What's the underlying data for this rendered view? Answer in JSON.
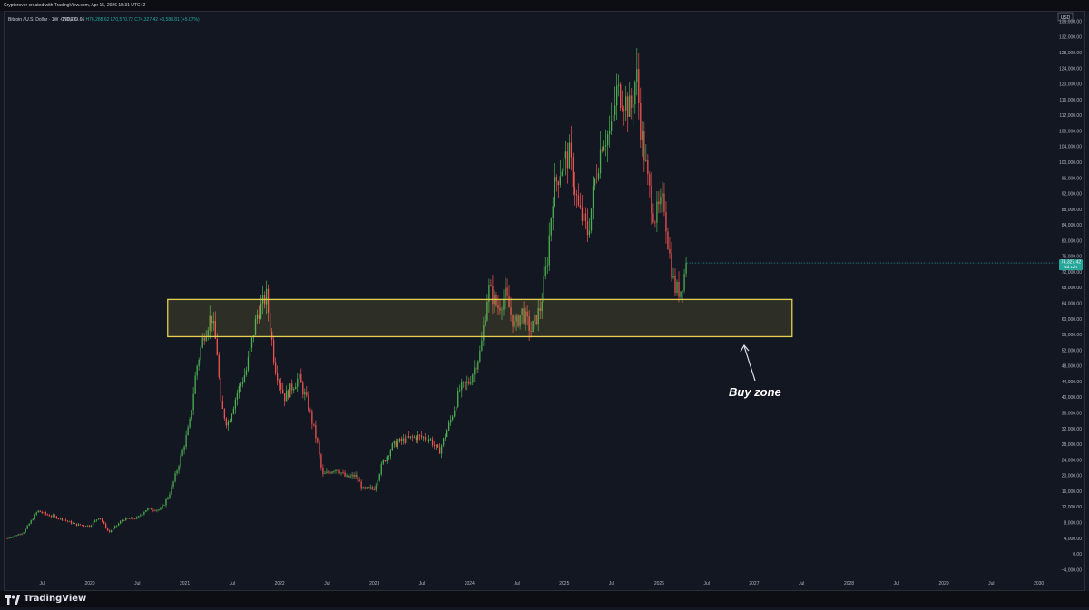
{
  "header": {
    "credit": "Cryptorover created with TradingView.com, Apr 15, 2026 15:31 UTC+2"
  },
  "legend": {
    "symbol": "Bitcoin / U.S. Dollar · 1W · INDEX",
    "open": "O70,739.66",
    "high": "H76,288.62",
    "low": "L70,570.72",
    "close": "C74,327.42",
    "change": "+3,588.81 (+5.07%)"
  },
  "price_axis": {
    "currency": "USD"
  },
  "price_badge": {
    "price": "74,327.42",
    "countdown": "4d 12h"
  },
  "annotation": {
    "text": "Buy zone"
  },
  "footer": {
    "brand": "TradingView"
  },
  "colors": {
    "up": "#26a69a",
    "upBright": "#4caf50",
    "down": "#ef5350",
    "zone": "#e3d04f",
    "bg": "#131722"
  },
  "chart_data": {
    "type": "candlestick",
    "timeframe": "1W",
    "y_ticks": [
      "136,000.00",
      "132,000.00",
      "128,000.00",
      "124,000.00",
      "120,000.00",
      "116,000.00",
      "112,000.00",
      "108,000.00",
      "104,000.00",
      "100,000.00",
      "96,000.00",
      "92,000.00",
      "88,000.00",
      "84,000.00",
      "80,000.00",
      "76,000.00",
      "72,000.00",
      "68,000.00",
      "64,000.00",
      "60,000.00",
      "56,000.00",
      "52,000.00",
      "48,000.00",
      "44,000.00",
      "40,000.00",
      "36,000.00",
      "32,000.00",
      "28,000.00",
      "24,000.00",
      "20,000.00",
      "16,000.00",
      "12,000.00",
      "8,000.00",
      "4,000.00",
      "0.00",
      "−4,000.00"
    ],
    "y_values": [
      136000,
      132000,
      128000,
      124000,
      120000,
      116000,
      112000,
      108000,
      104000,
      100000,
      96000,
      92000,
      88000,
      84000,
      80000,
      76000,
      72000,
      68000,
      64000,
      60000,
      56000,
      52000,
      48000,
      44000,
      40000,
      36000,
      32000,
      28000,
      24000,
      20000,
      16000,
      12000,
      8000,
      4000,
      0,
      -4000
    ],
    "ylim": [
      -5500,
      138000
    ],
    "x_ticks": [
      {
        "label": "Jul",
        "t": 2019.5
      },
      {
        "label": "2020",
        "t": 2020.0
      },
      {
        "label": "Jul",
        "t": 2020.5
      },
      {
        "label": "2021",
        "t": 2021.0
      },
      {
        "label": "Jul",
        "t": 2021.5
      },
      {
        "label": "2022",
        "t": 2022.0
      },
      {
        "label": "Jul",
        "t": 2022.5
      },
      {
        "label": "2023",
        "t": 2023.0
      },
      {
        "label": "Jul",
        "t": 2023.5
      },
      {
        "label": "2024",
        "t": 2024.0
      },
      {
        "label": "Jul",
        "t": 2024.5
      },
      {
        "label": "2025",
        "t": 2025.0
      },
      {
        "label": "Jul",
        "t": 2025.5
      },
      {
        "label": "2026",
        "t": 2026.0
      },
      {
        "label": "Jul",
        "t": 2026.5
      },
      {
        "label": "2027",
        "t": 2027.0
      },
      {
        "label": "Jul",
        "t": 2027.5
      },
      {
        "label": "2028",
        "t": 2028.0
      },
      {
        "label": "Jul",
        "t": 2028.5
      },
      {
        "label": "2029",
        "t": 2029.0
      },
      {
        "label": "Jul",
        "t": 2029.5
      },
      {
        "label": "2030",
        "t": 2030.0
      }
    ],
    "xlim": [
      2019.12,
      2030.08
    ],
    "buy_zone": {
      "price_low": 55500,
      "price_high": 65000,
      "t_start": 2020.82,
      "t_end": 2027.4
    },
    "price_path": [
      [
        2019.13,
        4000
      ],
      [
        2019.3,
        5500
      ],
      [
        2019.45,
        11000
      ],
      [
        2019.55,
        10000
      ],
      [
        2019.7,
        9000
      ],
      [
        2019.85,
        7500
      ],
      [
        2020.0,
        7200
      ],
      [
        2020.1,
        9500
      ],
      [
        2020.2,
        5500
      ],
      [
        2020.35,
        8800
      ],
      [
        2020.5,
        9200
      ],
      [
        2020.6,
        11500
      ],
      [
        2020.75,
        11300
      ],
      [
        2020.85,
        16000
      ],
      [
        2020.95,
        24000
      ],
      [
        2021.05,
        33000
      ],
      [
        2021.12,
        47000
      ],
      [
        2021.2,
        56000
      ],
      [
        2021.28,
        61000
      ],
      [
        2021.34,
        52000
      ],
      [
        2021.38,
        38000
      ],
      [
        2021.45,
        33000
      ],
      [
        2021.55,
        41000
      ],
      [
        2021.65,
        47000
      ],
      [
        2021.76,
        61000
      ],
      [
        2021.86,
        66000
      ],
      [
        2021.95,
        48000
      ],
      [
        2022.05,
        40000
      ],
      [
        2022.2,
        45000
      ],
      [
        2022.3,
        38000
      ],
      [
        2022.4,
        28000
      ],
      [
        2022.45,
        20000
      ],
      [
        2022.6,
        22000
      ],
      [
        2022.7,
        19500
      ],
      [
        2022.8,
        20000
      ],
      [
        2022.88,
        16500
      ],
      [
        2023.0,
        16800
      ],
      [
        2023.08,
        23000
      ],
      [
        2023.2,
        28000
      ],
      [
        2023.3,
        29000
      ],
      [
        2023.45,
        30000
      ],
      [
        2023.58,
        29500
      ],
      [
        2023.68,
        26000
      ],
      [
        2023.8,
        34000
      ],
      [
        2023.9,
        42000
      ],
      [
        2024.0,
        44000
      ],
      [
        2024.12,
        52000
      ],
      [
        2024.2,
        68000
      ],
      [
        2024.3,
        63000
      ],
      [
        2024.38,
        66000
      ],
      [
        2024.48,
        58000
      ],
      [
        2024.55,
        62000
      ],
      [
        2024.65,
        57000
      ],
      [
        2024.75,
        63000
      ],
      [
        2024.82,
        75000
      ],
      [
        2024.88,
        92000
      ],
      [
        2024.95,
        98000
      ],
      [
        2025.05,
        102000
      ],
      [
        2025.15,
        88000
      ],
      [
        2025.25,
        82000
      ],
      [
        2025.32,
        95000
      ],
      [
        2025.4,
        106000
      ],
      [
        2025.5,
        108000
      ],
      [
        2025.55,
        118000
      ],
      [
        2025.62,
        117000
      ],
      [
        2025.7,
        113000
      ],
      [
        2025.76,
        123000
      ],
      [
        2025.8,
        110000
      ],
      [
        2025.88,
        95000
      ],
      [
        2025.95,
        86000
      ],
      [
        2026.05,
        90000
      ],
      [
        2026.1,
        78000
      ],
      [
        2026.16,
        68000
      ],
      [
        2026.22,
        67000
      ],
      [
        2026.26,
        71000
      ],
      [
        2026.29,
        74327
      ]
    ],
    "last_price": 74327.42
  }
}
